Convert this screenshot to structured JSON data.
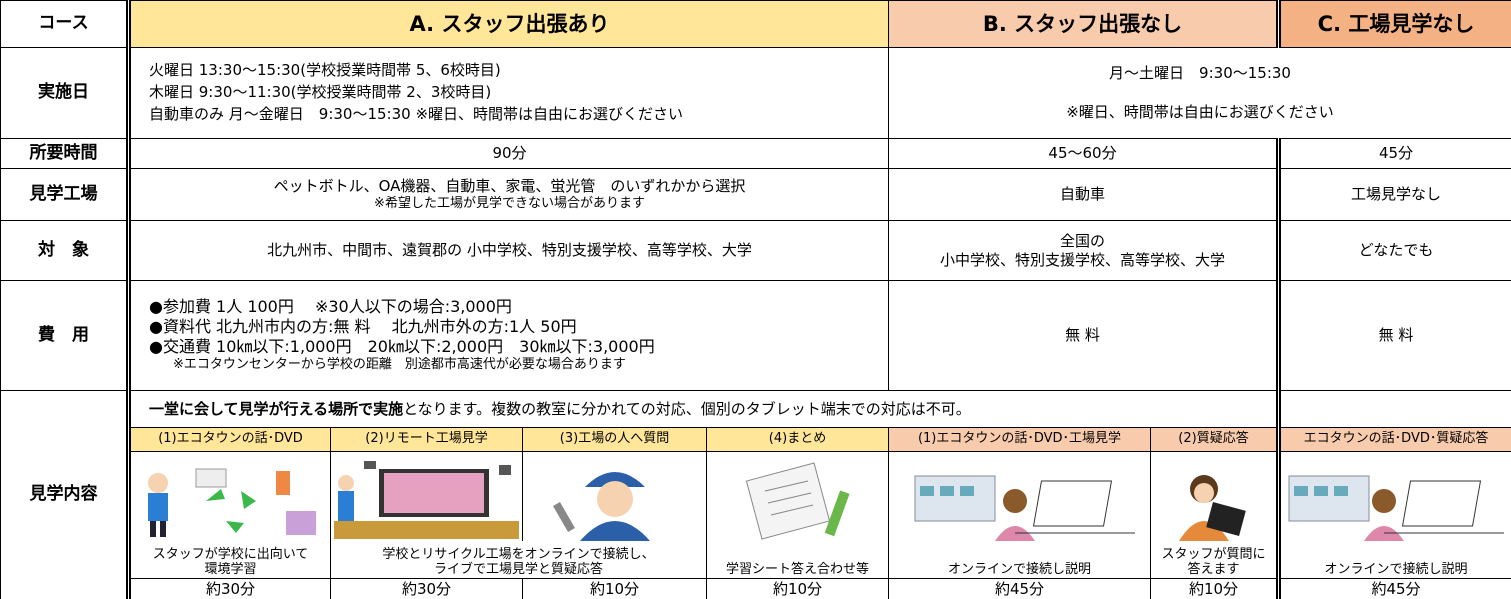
{
  "header": {
    "course": "コース",
    "a": "A. スタッフ出張あり",
    "b": "B. スタッフ出張なし",
    "c": "C. 工場見学なし"
  },
  "dates": {
    "label": "実施日",
    "a": [
      "火曜日 13:30～15:30(学校授業時間帯 5、6校時目)",
      "木曜日 9:30～11:30(学校授業時間帯 2、3校時目)",
      "自動車のみ 月～金曜日　9:30～15:30 ※曜日、時間帯は自由にお選びください"
    ],
    "bc": [
      "月～土曜日　9:30～15:30",
      "※曜日、時間帯は自由にお選びください"
    ]
  },
  "duration": {
    "label": "所要時間",
    "a": "90分",
    "b": "45～60分",
    "c": "45分"
  },
  "factory": {
    "label": "見学工場",
    "a": [
      "ペットボトル、OA機器、自動車、家電、蛍光管　のいずれかから選択",
      "※希望した工場が見学できない場合があります"
    ],
    "b": "自動車",
    "c": "工場見学なし"
  },
  "target": {
    "label": "対　象",
    "a": "北九州市、中間市、遠賀郡の 小中学校、特別支援学校、高等学校、大学",
    "b": [
      "全国の",
      "小中学校、特別支援学校、高等学校、大学"
    ],
    "c": "どなたでも"
  },
  "cost": {
    "label": "費　用",
    "a": [
      "●参加費 1人 100円　 ※30人以下の場合:3,000円",
      "●資料代 北九州市内の方:無 料　 北九州市外の方:1人 50円",
      "●交通費 10㎞以下:1,000円　20㎞以下:2,000円　30㎞以下:3,000円",
      "※エコタウンセンターから学校の距離　別途都市高速代が必要な場合あります"
    ],
    "b": "無 料",
    "c": "無 料"
  },
  "content": {
    "label": "見学内容",
    "intro": {
      "bold": "一堂に会して見学が行える場所で実施",
      "rest": "となります。複数の教室に分かれての対応、個別のタブレット端末での対応は不可。"
    },
    "a": {
      "steps": [
        "(1)エコタウンの話･DVD",
        "(2)リモート工場見学",
        "(3)工場の人へ質問",
        "(4)まとめ"
      ],
      "captions": [
        [
          "スタッフが学校に出向いて",
          "環境学習"
        ],
        [
          "学校とリサイクル工場をオンラインで接続し、",
          "ライブで工場見学と質疑応答"
        ],
        [
          "学習シート答え合わせ等"
        ]
      ],
      "times": [
        "約30分",
        "約30分",
        "約10分",
        "約10分"
      ]
    },
    "b": {
      "steps": [
        "(1)エコタウンの話･DVD･工場見学",
        "(2)質疑応答"
      ],
      "captions": [
        [
          "オンラインで接続し説明"
        ],
        [
          "スタッフが質問に",
          "答えます"
        ]
      ],
      "times": [
        "約45分",
        "約10分"
      ]
    },
    "c": {
      "steps": [
        "エコタウンの話･DVD･質疑応答"
      ],
      "captions": [
        [
          "オンラインで接続し説明"
        ]
      ],
      "times": [
        "約45分"
      ]
    }
  }
}
